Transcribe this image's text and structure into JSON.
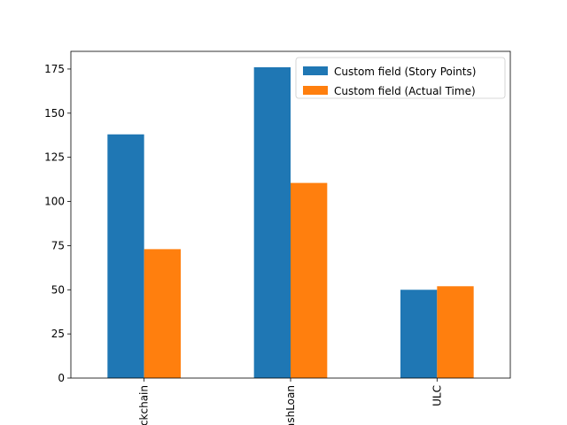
{
  "chart_data": {
    "type": "bar",
    "title": "",
    "xlabel": "",
    "ylabel": "",
    "categories": [
      "Blockchain",
      "FlashLoan",
      "ULC"
    ],
    "series": [
      {
        "name": "Custom field (Story Points)",
        "values": [
          138,
          176,
          50
        ],
        "color": "#1f77b4"
      },
      {
        "name": "Custom field (Actual Time)",
        "values": [
          73,
          110.5,
          52
        ],
        "color": "#ff7f0e"
      }
    ],
    "ylim": [
      0,
      185
    ],
    "yticks": [
      0,
      25,
      50,
      75,
      100,
      125,
      150,
      175
    ],
    "grid": false,
    "legend_position": "top-right"
  }
}
